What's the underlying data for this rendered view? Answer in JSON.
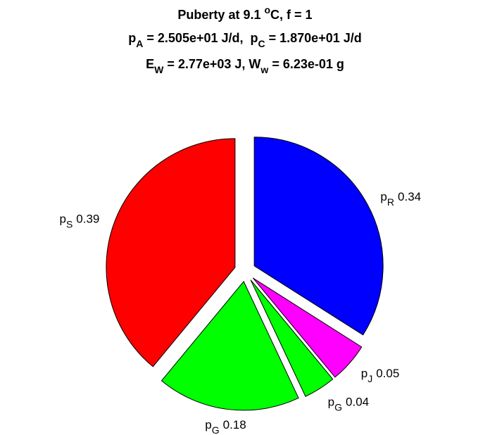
{
  "chart_data": {
    "type": "pie",
    "title_lines": [
      [
        {
          "text": "Puberty at 9.1 "
        },
        {
          "text": "o",
          "shift": "super"
        },
        {
          "text": "C, f = 1"
        }
      ],
      [
        {
          "text": "p"
        },
        {
          "text": "A",
          "shift": "sub"
        },
        {
          "text": " = 2.505e+01 J/d,  p"
        },
        {
          "text": "C",
          "shift": "sub"
        },
        {
          "text": " = 1.870e+01 J/d"
        }
      ],
      [
        {
          "text": "E"
        },
        {
          "text": "W",
          "shift": "sub"
        },
        {
          "text": " = 2.77e+03 J, W"
        },
        {
          "text": "w",
          "shift": "sub"
        },
        {
          "text": " = 6.23e-01 g"
        }
      ]
    ],
    "label_prefix": "p",
    "categories": [
      "R",
      "J",
      "G",
      "G",
      "S"
    ],
    "values": [
      0.34,
      0.05,
      0.04,
      0.18,
      0.39
    ],
    "colors": [
      "#0000ff",
      "#ff00ff",
      "#00ff00",
      "#00ff00",
      "#ff0000"
    ],
    "explode": true
  }
}
